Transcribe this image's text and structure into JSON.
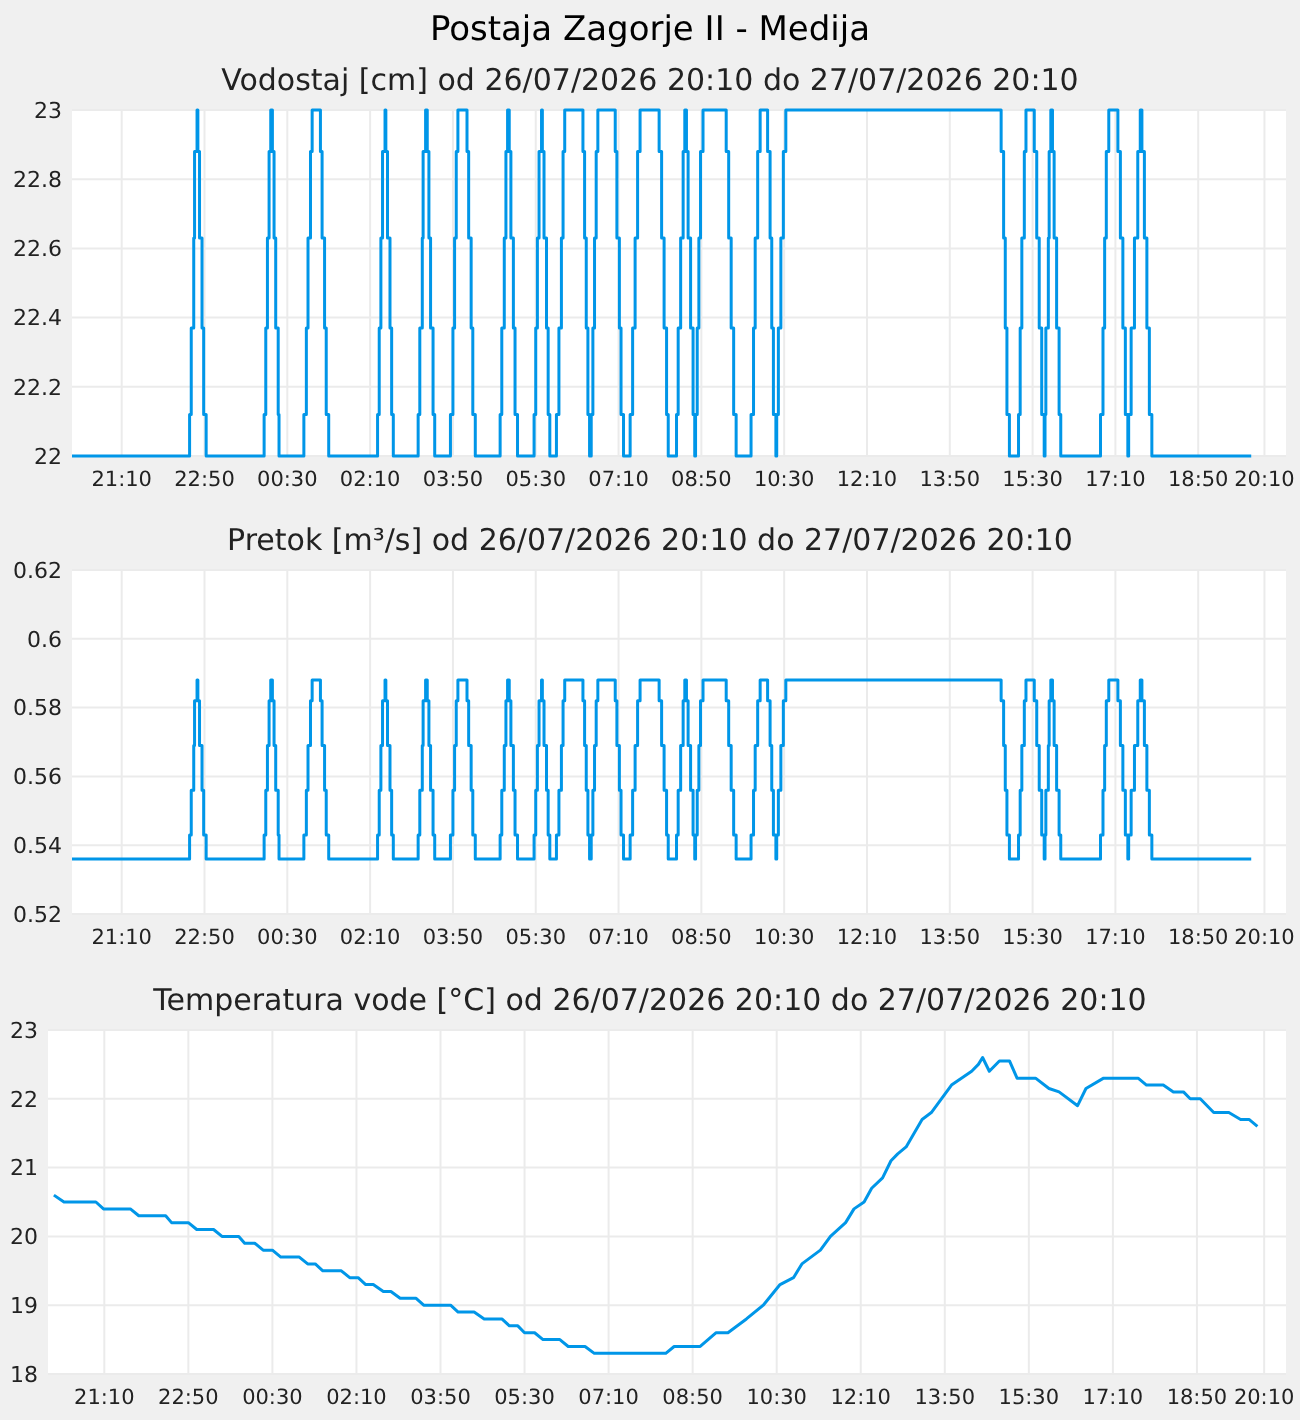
{
  "chart_data": [
    {
      "type": "step",
      "title": "Postaja Zagorje II - Medija",
      "subtitle": "Vodostaj [cm] od 26/07/2026 20:10 do 27/07/2026 20:10",
      "grid": true,
      "xlim": [
        "2026-07-26T20:10",
        "2026-07-27T20:36"
      ],
      "ylim": [
        22,
        23
      ],
      "yticks": [
        22,
        22.2,
        22.4,
        22.6,
        22.8,
        23
      ],
      "xticks": [
        {
          "value": "2026-07-26T21:10",
          "label": "21:10"
        },
        {
          "value": "2026-07-26T22:50",
          "label": "22:50"
        },
        {
          "value": "2026-07-27T00:30",
          "label": "00:30"
        },
        {
          "value": "2026-07-27T02:10",
          "label": "02:10"
        },
        {
          "value": "2026-07-27T03:50",
          "label": "03:50"
        },
        {
          "value": "2026-07-27T05:30",
          "label": "05:30"
        },
        {
          "value": "2026-07-27T07:10",
          "label": "07:10"
        },
        {
          "value": "2026-07-27T08:50",
          "label": "08:50"
        },
        {
          "value": "2026-07-27T10:30",
          "label": "10:30"
        },
        {
          "value": "2026-07-27T12:10",
          "label": "12:10"
        },
        {
          "value": "2026-07-27T13:50",
          "label": "13:50"
        },
        {
          "value": "2026-07-27T15:30",
          "label": "15:30"
        },
        {
          "value": "2026-07-27T17:10",
          "label": "17:10"
        },
        {
          "value": "2026-07-27T18:50",
          "label": "18:50"
        },
        {
          "value": "2026-07-27T20:10",
          "label": "20:10"
        }
      ],
      "x": [
        "2026-07-26T20:10",
        "2026-07-26T22:32",
        "2026-07-26T22:34",
        "2026-07-26T22:37",
        "2026-07-26T22:38",
        "2026-07-26T22:41",
        "2026-07-26T22:42",
        "2026-07-26T22:44",
        "2026-07-26T22:47",
        "2026-07-26T22:49",
        "2026-07-26T22:52",
        "2026-07-27T00:02",
        "2026-07-27T00:04",
        "2026-07-27T00:06",
        "2026-07-27T00:08",
        "2026-07-27T00:10",
        "2026-07-27T00:12",
        "2026-07-27T00:14",
        "2026-07-27T00:16",
        "2026-07-27T00:19",
        "2026-07-27T00:20",
        "2026-07-27T00:50",
        "2026-07-27T00:53",
        "2026-07-27T00:55",
        "2026-07-27T00:58",
        "2026-07-27T01:00",
        "2026-07-27T01:10",
        "2026-07-27T01:12",
        "2026-07-27T01:15",
        "2026-07-27T01:17",
        "2026-07-27T01:20",
        "2026-07-27T02:19",
        "2026-07-27T02:21",
        "2026-07-27T02:23",
        "2026-07-27T02:25",
        "2026-07-27T02:28",
        "2026-07-27T02:29",
        "2026-07-27T02:31",
        "2026-07-27T02:34",
        "2026-07-27T02:36",
        "2026-07-27T02:38",
        "2026-07-27T03:08",
        "2026-07-27T03:10",
        "2026-07-27T03:13",
        "2026-07-27T03:14",
        "2026-07-27T03:17",
        "2026-07-27T03:19",
        "2026-07-27T03:21",
        "2026-07-27T03:23",
        "2026-07-27T03:26",
        "2026-07-27T03:28",
        "2026-07-27T03:47",
        "2026-07-27T03:50",
        "2026-07-27T03:52",
        "2026-07-27T03:54",
        "2026-07-27T03:56",
        "2026-07-27T04:07",
        "2026-07-27T04:09",
        "2026-07-27T04:12",
        "2026-07-27T04:14",
        "2026-07-27T04:17",
        "2026-07-27T04:47",
        "2026-07-27T04:49",
        "2026-07-27T04:52",
        "2026-07-27T04:54",
        "2026-07-27T04:56",
        "2026-07-27T04:58",
        "2026-07-27T05:00",
        "2026-07-27T05:03",
        "2026-07-27T05:05",
        "2026-07-27T05:08",
        "2026-07-27T05:28",
        "2026-07-27T05:30",
        "2026-07-27T05:32",
        "2026-07-27T05:34",
        "2026-07-27T05:37",
        "2026-07-27T05:38",
        "2026-07-27T05:40",
        "2026-07-27T05:43",
        "2026-07-27T05:45",
        "2026-07-27T05:47",
        "2026-07-27T05:55",
        "2026-07-27T05:58",
        "2026-07-27T06:01",
        "2026-07-27T06:03",
        "2026-07-27T06:05",
        "2026-07-27T06:27",
        "2026-07-27T06:29",
        "2026-07-27T06:31",
        "2026-07-27T06:33",
        "2026-07-27T06:35",
        "2026-07-27T06:37",
        "2026-07-27T06:39",
        "2026-07-27T06:41",
        "2026-07-27T06:43",
        "2026-07-27T06:45",
        "2026-07-27T07:06",
        "2026-07-27T07:08",
        "2026-07-27T07:11",
        "2026-07-27T07:13",
        "2026-07-27T07:16",
        "2026-07-27T07:24",
        "2026-07-27T07:27",
        "2026-07-27T07:30",
        "2026-07-27T07:33",
        "2026-07-27T07:36",
        "2026-07-27T07:59",
        "2026-07-27T08:02",
        "2026-07-27T08:05",
        "2026-07-27T08:08",
        "2026-07-27T08:10",
        "2026-07-27T08:20",
        "2026-07-27T08:22",
        "2026-07-27T08:25",
        "2026-07-27T08:28",
        "2026-07-27T08:30",
        "2026-07-27T08:32",
        "2026-07-27T08:34",
        "2026-07-27T08:37",
        "2026-07-27T08:40",
        "2026-07-27T08:42",
        "2026-07-27T08:43",
        "2026-07-27T08:45",
        "2026-07-27T08:47",
        "2026-07-27T08:49",
        "2026-07-27T08:52",
        "2026-07-27T09:20",
        "2026-07-27T09:23",
        "2026-07-27T09:26",
        "2026-07-27T09:29",
        "2026-07-27T09:32",
        "2026-07-27T09:50",
        "2026-07-27T09:53",
        "2026-07-27T09:55",
        "2026-07-27T09:58",
        "2026-07-27T10:01",
        "2026-07-27T10:10",
        "2026-07-27T10:13",
        "2026-07-27T10:15",
        "2026-07-27T10:17",
        "2026-07-27T10:20",
        "2026-07-27T10:21",
        "2026-07-27T10:23",
        "2026-07-27T10:26",
        "2026-07-27T10:29",
        "2026-07-27T10:32",
        "2026-07-27T14:52",
        "2026-07-27T14:55",
        "2026-07-27T14:57",
        "2026-07-27T14:59",
        "2026-07-27T15:02",
        "2026-07-27T15:13",
        "2026-07-27T15:15",
        "2026-07-27T15:17",
        "2026-07-27T15:20",
        "2026-07-27T15:22",
        "2026-07-27T15:32",
        "2026-07-27T15:35",
        "2026-07-27T15:38",
        "2026-07-27T15:41",
        "2026-07-27T15:44",
        "2026-07-27T15:45",
        "2026-07-27T15:46",
        "2026-07-27T15:49",
        "2026-07-27T15:50",
        "2026-07-27T15:52",
        "2026-07-27T15:54",
        "2026-07-27T15:56",
        "2026-07-27T15:59",
        "2026-07-27T16:02",
        "2026-07-27T16:04",
        "2026-07-27T16:52",
        "2026-07-27T16:55",
        "2026-07-27T16:57",
        "2026-07-27T16:59",
        "2026-07-27T17:02",
        "2026-07-27T17:13",
        "2026-07-27T17:16",
        "2026-07-27T17:19",
        "2026-07-27T17:22",
        "2026-07-27T17:25",
        "2026-07-27T17:26",
        "2026-07-27T17:29",
        "2026-07-27T17:33",
        "2026-07-27T17:37",
        "2026-07-27T17:40",
        "2026-07-27T17:42",
        "2026-07-27T17:45",
        "2026-07-27T17:48",
        "2026-07-27T17:51",
        "2026-07-27T17:54",
        "2026-07-27T19:54"
      ],
      "series": [
        {
          "color": "#0096e8",
          "values": [
            22,
            22.12,
            22.37,
            22.63,
            22.88,
            23,
            22.88,
            22.63,
            22.37,
            22.12,
            22,
            22.12,
            22.37,
            22.63,
            22.88,
            23,
            22.88,
            22.63,
            22.37,
            22.12,
            22,
            22.12,
            22.37,
            22.63,
            22.88,
            23,
            22.88,
            22.63,
            22.37,
            22.12,
            22,
            22.12,
            22.37,
            22.63,
            22.88,
            23,
            22.88,
            22.63,
            22.37,
            22.12,
            22,
            22.12,
            22.37,
            22.63,
            22.88,
            23,
            22.88,
            22.63,
            22.37,
            22.12,
            22,
            22.12,
            22.37,
            22.63,
            22.88,
            23,
            22.88,
            22.63,
            22.37,
            22.12,
            22,
            22.12,
            22.37,
            22.63,
            22.88,
            23,
            22.88,
            22.63,
            22.37,
            22.12,
            22,
            22.12,
            22.37,
            22.63,
            22.88,
            23,
            22.88,
            22.63,
            22.37,
            22.12,
            22,
            22.12,
            22.37,
            22.63,
            22.88,
            23,
            22.88,
            22.63,
            22.37,
            22.12,
            22,
            22.12,
            22.37,
            22.63,
            22.88,
            23,
            22.88,
            22.63,
            22.37,
            22.12,
            22,
            22.12,
            22.37,
            22.63,
            22.88,
            23,
            22.88,
            22.63,
            22.37,
            22.12,
            22,
            22.12,
            22.37,
            22.63,
            22.88,
            23,
            22.88,
            22.63,
            22.37,
            22.12,
            22,
            22.12,
            22.37,
            22.63,
            22.88,
            23,
            22.88,
            22.63,
            22.37,
            22.12,
            22,
            22.12,
            22.37,
            22.63,
            22.88,
            23,
            22.88,
            22.63,
            22.37,
            22.12,
            22,
            22.12,
            22.37,
            22.63,
            22.88,
            23,
            22.88,
            22.63,
            22.37,
            22.12,
            22,
            22.12,
            22.37,
            22.63,
            22.88,
            23,
            22.88,
            22.63,
            22.37,
            22.12,
            22,
            22.12,
            22.37,
            22.63,
            22.88,
            23,
            22.88,
            22.63,
            22.37,
            22.12,
            22,
            22.12,
            22.37,
            22.63,
            22.88,
            23,
            22.88,
            22.63,
            22.37,
            22.12,
            22,
            22.12,
            22.37,
            22.63,
            22.88,
            23,
            22.88,
            22.63,
            22.37,
            22.12,
            22,
            22
          ]
        }
      ]
    },
    {
      "type": "step",
      "title": "Pretok [m³/s] od 26/07/2026 20:10 do 27/07/2026 20:10",
      "grid": true,
      "xlim": [
        "2026-07-26T20:10",
        "2026-07-27T20:36"
      ],
      "ylim": [
        0.52,
        0.62
      ],
      "yticks": [
        0.52,
        0.54,
        0.56,
        0.58,
        0.6,
        0.62
      ],
      "xticks": [
        {
          "value": "2026-07-26T21:10",
          "label": "21:10"
        },
        {
          "value": "2026-07-26T22:50",
          "label": "22:50"
        },
        {
          "value": "2026-07-27T00:30",
          "label": "00:30"
        },
        {
          "value": "2026-07-27T02:10",
          "label": "02:10"
        },
        {
          "value": "2026-07-27T03:50",
          "label": "03:50"
        },
        {
          "value": "2026-07-27T05:30",
          "label": "05:30"
        },
        {
          "value": "2026-07-27T07:10",
          "label": "07:10"
        },
        {
          "value": "2026-07-27T08:50",
          "label": "08:50"
        },
        {
          "value": "2026-07-27T10:30",
          "label": "10:30"
        },
        {
          "value": "2026-07-27T12:10",
          "label": "12:10"
        },
        {
          "value": "2026-07-27T13:50",
          "label": "13:50"
        },
        {
          "value": "2026-07-27T15:30",
          "label": "15:30"
        },
        {
          "value": "2026-07-27T17:10",
          "label": "17:10"
        },
        {
          "value": "2026-07-27T18:50",
          "label": "18:50"
        },
        {
          "value": "2026-07-27T20:10",
          "label": "20:10"
        }
      ],
      "x": [
        "2026-07-26T20:10",
        "2026-07-26T22:32",
        "2026-07-26T22:34",
        "2026-07-26T22:37",
        "2026-07-26T22:38",
        "2026-07-26T22:41",
        "2026-07-26T22:42",
        "2026-07-26T22:44",
        "2026-07-26T22:47",
        "2026-07-26T22:49",
        "2026-07-26T22:52",
        "2026-07-27T00:02",
        "2026-07-27T00:04",
        "2026-07-27T00:06",
        "2026-07-27T00:08",
        "2026-07-27T00:10",
        "2026-07-27T00:12",
        "2026-07-27T00:14",
        "2026-07-27T00:16",
        "2026-07-27T00:19",
        "2026-07-27T00:20",
        "2026-07-27T00:50",
        "2026-07-27T00:53",
        "2026-07-27T00:55",
        "2026-07-27T00:58",
        "2026-07-27T01:00",
        "2026-07-27T01:10",
        "2026-07-27T01:12",
        "2026-07-27T01:15",
        "2026-07-27T01:17",
        "2026-07-27T01:20",
        "2026-07-27T02:19",
        "2026-07-27T02:21",
        "2026-07-27T02:23",
        "2026-07-27T02:25",
        "2026-07-27T02:28",
        "2026-07-27T02:29",
        "2026-07-27T02:31",
        "2026-07-27T02:34",
        "2026-07-27T02:36",
        "2026-07-27T02:38",
        "2026-07-27T03:08",
        "2026-07-27T03:10",
        "2026-07-27T03:13",
        "2026-07-27T03:14",
        "2026-07-27T03:17",
        "2026-07-27T03:19",
        "2026-07-27T03:21",
        "2026-07-27T03:23",
        "2026-07-27T03:26",
        "2026-07-27T03:28",
        "2026-07-27T03:47",
        "2026-07-27T03:50",
        "2026-07-27T03:52",
        "2026-07-27T03:54",
        "2026-07-27T03:56",
        "2026-07-27T04:07",
        "2026-07-27T04:09",
        "2026-07-27T04:12",
        "2026-07-27T04:14",
        "2026-07-27T04:17",
        "2026-07-27T04:47",
        "2026-07-27T04:49",
        "2026-07-27T04:52",
        "2026-07-27T04:54",
        "2026-07-27T04:56",
        "2026-07-27T04:58",
        "2026-07-27T05:00",
        "2026-07-27T05:03",
        "2026-07-27T05:05",
        "2026-07-27T05:08",
        "2026-07-27T05:28",
        "2026-07-27T05:30",
        "2026-07-27T05:32",
        "2026-07-27T05:34",
        "2026-07-27T05:37",
        "2026-07-27T05:38",
        "2026-07-27T05:40",
        "2026-07-27T05:43",
        "2026-07-27T05:45",
        "2026-07-27T05:47",
        "2026-07-27T05:55",
        "2026-07-27T05:58",
        "2026-07-27T06:01",
        "2026-07-27T06:03",
        "2026-07-27T06:05",
        "2026-07-27T06:27",
        "2026-07-27T06:29",
        "2026-07-27T06:31",
        "2026-07-27T06:33",
        "2026-07-27T06:35",
        "2026-07-27T06:37",
        "2026-07-27T06:39",
        "2026-07-27T06:41",
        "2026-07-27T06:43",
        "2026-07-27T06:45",
        "2026-07-27T07:06",
        "2026-07-27T07:08",
        "2026-07-27T07:11",
        "2026-07-27T07:13",
        "2026-07-27T07:16",
        "2026-07-27T07:24",
        "2026-07-27T07:27",
        "2026-07-27T07:30",
        "2026-07-27T07:33",
        "2026-07-27T07:36",
        "2026-07-27T07:59",
        "2026-07-27T08:02",
        "2026-07-27T08:05",
        "2026-07-27T08:08",
        "2026-07-27T08:10",
        "2026-07-27T08:20",
        "2026-07-27T08:22",
        "2026-07-27T08:25",
        "2026-07-27T08:28",
        "2026-07-27T08:30",
        "2026-07-27T08:32",
        "2026-07-27T08:34",
        "2026-07-27T08:37",
        "2026-07-27T08:40",
        "2026-07-27T08:42",
        "2026-07-27T08:43",
        "2026-07-27T08:45",
        "2026-07-27T08:47",
        "2026-07-27T08:49",
        "2026-07-27T08:52",
        "2026-07-27T09:20",
        "2026-07-27T09:23",
        "2026-07-27T09:26",
        "2026-07-27T09:29",
        "2026-07-27T09:32",
        "2026-07-27T09:50",
        "2026-07-27T09:53",
        "2026-07-27T09:55",
        "2026-07-27T09:58",
        "2026-07-27T10:01",
        "2026-07-27T10:10",
        "2026-07-27T10:13",
        "2026-07-27T10:15",
        "2026-07-27T10:17",
        "2026-07-27T10:20",
        "2026-07-27T10:21",
        "2026-07-27T10:23",
        "2026-07-27T10:26",
        "2026-07-27T10:29",
        "2026-07-27T10:32",
        "2026-07-27T14:52",
        "2026-07-27T14:55",
        "2026-07-27T14:57",
        "2026-07-27T14:59",
        "2026-07-27T15:02",
        "2026-07-27T15:13",
        "2026-07-27T15:15",
        "2026-07-27T15:17",
        "2026-07-27T15:20",
        "2026-07-27T15:22",
        "2026-07-27T15:32",
        "2026-07-27T15:35",
        "2026-07-27T15:38",
        "2026-07-27T15:41",
        "2026-07-27T15:44",
        "2026-07-27T15:45",
        "2026-07-27T15:46",
        "2026-07-27T15:49",
        "2026-07-27T15:50",
        "2026-07-27T15:52",
        "2026-07-27T15:54",
        "2026-07-27T15:56",
        "2026-07-27T15:59",
        "2026-07-27T16:02",
        "2026-07-27T16:04",
        "2026-07-27T16:52",
        "2026-07-27T16:55",
        "2026-07-27T16:57",
        "2026-07-27T16:59",
        "2026-07-27T17:02",
        "2026-07-27T17:13",
        "2026-07-27T17:16",
        "2026-07-27T17:19",
        "2026-07-27T17:22",
        "2026-07-27T17:25",
        "2026-07-27T17:26",
        "2026-07-27T17:29",
        "2026-07-27T17:33",
        "2026-07-27T17:37",
        "2026-07-27T17:40",
        "2026-07-27T17:42",
        "2026-07-27T17:45",
        "2026-07-27T17:48",
        "2026-07-27T17:51",
        "2026-07-27T17:54",
        "2026-07-27T19:54"
      ],
      "series": [
        {
          "color": "#0096e8",
          "values": [
            0.536,
            0.543,
            0.556,
            0.569,
            0.582,
            0.588,
            0.582,
            0.569,
            0.556,
            0.543,
            0.536,
            0.543,
            0.556,
            0.569,
            0.582,
            0.588,
            0.582,
            0.569,
            0.556,
            0.543,
            0.536,
            0.543,
            0.556,
            0.569,
            0.582,
            0.588,
            0.582,
            0.569,
            0.556,
            0.543,
            0.536,
            0.543,
            0.556,
            0.569,
            0.582,
            0.588,
            0.582,
            0.569,
            0.556,
            0.543,
            0.536,
            0.543,
            0.556,
            0.569,
            0.582,
            0.588,
            0.582,
            0.569,
            0.556,
            0.543,
            0.536,
            0.543,
            0.556,
            0.569,
            0.582,
            0.588,
            0.582,
            0.569,
            0.556,
            0.543,
            0.536,
            0.543,
            0.556,
            0.569,
            0.582,
            0.588,
            0.582,
            0.569,
            0.556,
            0.543,
            0.536,
            0.543,
            0.556,
            0.569,
            0.582,
            0.588,
            0.582,
            0.569,
            0.556,
            0.543,
            0.536,
            0.543,
            0.556,
            0.569,
            0.582,
            0.588,
            0.582,
            0.569,
            0.556,
            0.543,
            0.536,
            0.543,
            0.556,
            0.569,
            0.582,
            0.588,
            0.582,
            0.569,
            0.556,
            0.543,
            0.536,
            0.543,
            0.556,
            0.569,
            0.582,
            0.588,
            0.582,
            0.569,
            0.556,
            0.543,
            0.536,
            0.543,
            0.556,
            0.569,
            0.582,
            0.588,
            0.582,
            0.569,
            0.556,
            0.543,
            0.536,
            0.543,
            0.556,
            0.569,
            0.582,
            0.588,
            0.582,
            0.569,
            0.556,
            0.543,
            0.536,
            0.543,
            0.556,
            0.569,
            0.582,
            0.588,
            0.582,
            0.569,
            0.556,
            0.543,
            0.536,
            0.543,
            0.556,
            0.569,
            0.582,
            0.588,
            0.582,
            0.569,
            0.556,
            0.543,
            0.536,
            0.543,
            0.556,
            0.569,
            0.582,
            0.588,
            0.582,
            0.569,
            0.556,
            0.543,
            0.536,
            0.543,
            0.556,
            0.569,
            0.582,
            0.588,
            0.582,
            0.569,
            0.556,
            0.543,
            0.536,
            0.543,
            0.556,
            0.569,
            0.582,
            0.588,
            0.582,
            0.569,
            0.556,
            0.543,
            0.536,
            0.543,
            0.556,
            0.569,
            0.582,
            0.588,
            0.582,
            0.569,
            0.556,
            0.543,
            0.536,
            0.536
          ]
        }
      ]
    },
    {
      "type": "line",
      "title": "Temperatura vode [°C] od 26/07/2026 20:10 do 27/07/2026 20:10",
      "grid": true,
      "xlim": [
        "2026-07-26T20:03",
        "2026-07-27T20:36"
      ],
      "ylim": [
        18,
        23
      ],
      "yticks": [
        18,
        19,
        20,
        21,
        22,
        23
      ],
      "xticks": [
        {
          "value": "2026-07-26T21:10",
          "label": "21:10"
        },
        {
          "value": "2026-07-26T22:50",
          "label": "22:50"
        },
        {
          "value": "2026-07-27T00:30",
          "label": "00:30"
        },
        {
          "value": "2026-07-27T02:10",
          "label": "02:10"
        },
        {
          "value": "2026-07-27T03:50",
          "label": "03:50"
        },
        {
          "value": "2026-07-27T05:30",
          "label": "05:30"
        },
        {
          "value": "2026-07-27T07:10",
          "label": "07:10"
        },
        {
          "value": "2026-07-27T08:50",
          "label": "08:50"
        },
        {
          "value": "2026-07-27T10:30",
          "label": "10:30"
        },
        {
          "value": "2026-07-27T12:10",
          "label": "12:10"
        },
        {
          "value": "2026-07-27T13:50",
          "label": "13:50"
        },
        {
          "value": "2026-07-27T15:30",
          "label": "15:30"
        },
        {
          "value": "2026-07-27T17:10",
          "label": "17:10"
        },
        {
          "value": "2026-07-27T18:50",
          "label": "18:50"
        },
        {
          "value": "2026-07-27T20:10",
          "label": "20:10"
        }
      ],
      "x": [
        "2026-07-26T20:10",
        "2026-07-26T20:22",
        "2026-07-26T21:00",
        "2026-07-26T21:09",
        "2026-07-26T21:41",
        "2026-07-26T21:51",
        "2026-07-26T22:23",
        "2026-07-26T22:30",
        "2026-07-26T22:50",
        "2026-07-26T23:00",
        "2026-07-26T23:20",
        "2026-07-26T23:30",
        "2026-07-26T23:50",
        "2026-07-26T23:57",
        "2026-07-27T00:09",
        "2026-07-27T00:19",
        "2026-07-27T00:30",
        "2026-07-27T00:40",
        "2026-07-27T01:02",
        "2026-07-27T01:12",
        "2026-07-27T01:21",
        "2026-07-27T01:30",
        "2026-07-27T01:52",
        "2026-07-27T02:02",
        "2026-07-27T02:12",
        "2026-07-27T02:21",
        "2026-07-27T02:30",
        "2026-07-27T02:42",
        "2026-07-27T02:51",
        "2026-07-27T03:02",
        "2026-07-27T03:21",
        "2026-07-27T03:30",
        "2026-07-27T04:02",
        "2026-07-27T04:11",
        "2026-07-27T04:30",
        "2026-07-27T04:42",
        "2026-07-27T05:03",
        "2026-07-27T05:12",
        "2026-07-27T05:22",
        "2026-07-27T05:30",
        "2026-07-27T05:42",
        "2026-07-27T05:52",
        "2026-07-27T06:12",
        "2026-07-27T06:22",
        "2026-07-27T06:42",
        "2026-07-27T06:53",
        "2026-07-27T08:18",
        "2026-07-27T08:28",
        "2026-07-27T08:59",
        "2026-07-27T09:18",
        "2026-07-27T09:32",
        "2026-07-27T09:54",
        "2026-07-27T10:14",
        "2026-07-27T10:34",
        "2026-07-27T10:50",
        "2026-07-27T11:00",
        "2026-07-27T11:22",
        "2026-07-27T11:34",
        "2026-07-27T11:52",
        "2026-07-27T12:02",
        "2026-07-27T12:14",
        "2026-07-27T12:23",
        "2026-07-27T12:36",
        "2026-07-27T12:46",
        "2026-07-27T12:54",
        "2026-07-27T13:04",
        "2026-07-27T13:23",
        "2026-07-27T13:34",
        "2026-07-27T13:46",
        "2026-07-27T13:58",
        "2026-07-27T14:22",
        "2026-07-27T14:30",
        "2026-07-27T14:35",
        "2026-07-27T14:43",
        "2026-07-27T14:55",
        "2026-07-27T15:07",
        "2026-07-27T15:16",
        "2026-07-27T15:38",
        "2026-07-27T15:54",
        "2026-07-27T16:06",
        "2026-07-27T16:28",
        "2026-07-27T16:38",
        "2026-07-27T16:59",
        "2026-07-27T17:40",
        "2026-07-27T17:50",
        "2026-07-27T18:10",
        "2026-07-27T18:22",
        "2026-07-27T18:34",
        "2026-07-27T18:42",
        "2026-07-27T18:54",
        "2026-07-27T19:10",
        "2026-07-27T19:28",
        "2026-07-27T19:42",
        "2026-07-27T19:52",
        "2026-07-27T20:02"
      ],
      "series": [
        {
          "color": "#0096e8",
          "values": [
            20.6,
            20.5,
            20.5,
            20.4,
            20.4,
            20.3,
            20.3,
            20.2,
            20.2,
            20.1,
            20.1,
            20.0,
            20.0,
            19.9,
            19.9,
            19.8,
            19.8,
            19.7,
            19.7,
            19.6,
            19.6,
            19.5,
            19.5,
            19.4,
            19.4,
            19.3,
            19.3,
            19.2,
            19.2,
            19.1,
            19.1,
            19.0,
            19.0,
            18.9,
            18.9,
            18.8,
            18.8,
            18.7,
            18.7,
            18.6,
            18.6,
            18.5,
            18.5,
            18.4,
            18.4,
            18.3,
            18.3,
            18.4,
            18.4,
            18.6,
            18.6,
            18.8,
            19.0,
            19.3,
            19.4,
            19.6,
            19.8,
            20.0,
            20.2,
            20.4,
            20.5,
            20.7,
            20.85,
            21.1,
            21.2,
            21.3,
            21.7,
            21.8,
            22.0,
            22.2,
            22.4,
            22.5,
            22.6,
            22.4,
            22.55,
            22.55,
            22.3,
            22.3,
            22.15,
            22.1,
            21.9,
            22.15,
            22.3,
            22.3,
            22.2,
            22.2,
            22.1,
            22.1,
            22.0,
            22.0,
            21.8,
            21.8,
            21.7,
            21.7,
            21.6
          ]
        }
      ]
    }
  ]
}
